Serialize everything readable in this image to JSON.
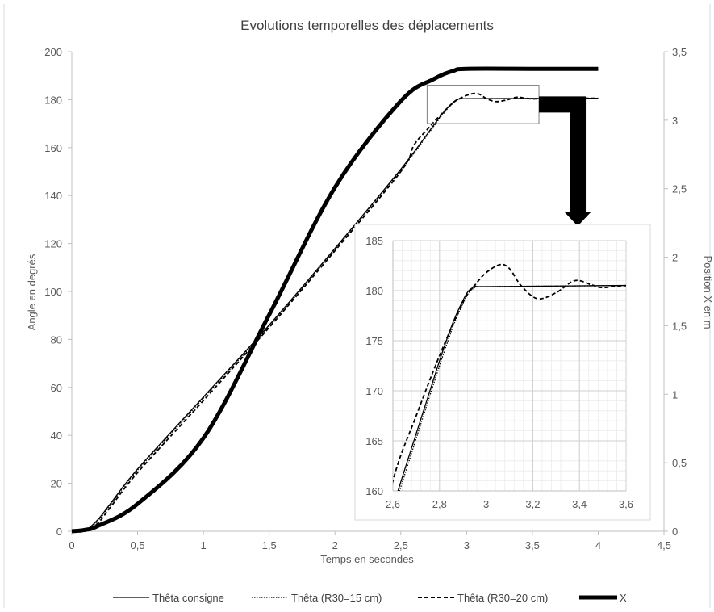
{
  "chart_data": {
    "type": "line",
    "title": "Evolutions temporelles des déplacements",
    "xlabel": "Temps en secondes",
    "ylabel": "Angle en degrés",
    "y2label": "Position X en m",
    "xlim": [
      0,
      4.5
    ],
    "ylim": [
      0,
      200
    ],
    "y2lim": [
      0,
      3.5
    ],
    "xticks": [
      "0",
      "0,5",
      "1",
      "1,5",
      "2",
      "2,5",
      "3",
      "3,5",
      "4",
      "4,5"
    ],
    "yticks": [
      "0",
      "20",
      "40",
      "60",
      "80",
      "100",
      "120",
      "140",
      "160",
      "180",
      "200"
    ],
    "y2ticks": [
      "0",
      "0,5",
      "1",
      "1,5",
      "2",
      "2,5",
      "3",
      "3,5"
    ],
    "grid": false,
    "legend_position": "bottom",
    "series": [
      {
        "name": "Thêta consigne",
        "axis": "left",
        "style": "solid-thin",
        "x": [
          0,
          0.1,
          0.2,
          0.3,
          0.5,
          1.0,
          1.5,
          2.0,
          2.5,
          2.8,
          2.9,
          2.95,
          3.0,
          3.5,
          4.0
        ],
        "y": [
          0,
          0.3,
          5,
          12,
          26,
          56,
          86,
          118,
          151,
          173,
          179,
          180.4,
          180.4,
          180.5,
          180.6
        ]
      },
      {
        "name": "Thêta (R30=15 cm)",
        "axis": "left",
        "style": "dotted",
        "x": [
          0,
          0.1,
          0.2,
          0.3,
          0.5,
          1.0,
          1.5,
          2.0,
          2.5,
          2.8,
          2.9,
          2.95,
          3.0,
          3.5,
          4.0
        ],
        "y": [
          0,
          0.2,
          4.5,
          11.5,
          25.5,
          55.5,
          85.5,
          117.5,
          150.5,
          172.5,
          178.7,
          180.3,
          180.4,
          180.5,
          180.6
        ]
      },
      {
        "name": "Thêta (R30=20 cm)",
        "axis": "left",
        "style": "dashed",
        "x": [
          0,
          0.1,
          0.2,
          0.3,
          0.5,
          1.0,
          1.5,
          2.0,
          2.5,
          2.6,
          2.7,
          2.8,
          2.9,
          2.95,
          3.0,
          3.06,
          3.1,
          3.15,
          3.22,
          3.3,
          3.38,
          3.45,
          3.5,
          3.6,
          4.0
        ],
        "y": [
          0,
          0,
          3.5,
          10.5,
          24.5,
          54.5,
          85,
          117,
          150,
          161,
          167.5,
          173.5,
          178.8,
          180.5,
          181.8,
          182.6,
          182.2,
          180.5,
          179.2,
          179.8,
          181,
          180.6,
          180.3,
          180.5,
          180.6
        ]
      },
      {
        "name": "X",
        "axis": "right",
        "style": "solid-thick",
        "x": [
          0,
          0.1,
          0.2,
          0.5,
          1.0,
          1.5,
          2.0,
          2.5,
          2.75,
          2.9,
          3.0,
          3.5,
          4.0
        ],
        "y": [
          0,
          0.01,
          0.04,
          0.2,
          0.68,
          1.58,
          2.51,
          3.14,
          3.3,
          3.36,
          3.375,
          3.375,
          3.375
        ]
      }
    ],
    "zoom_box": {
      "xlim": [
        2.7,
        3.55
      ],
      "ylim": [
        170,
        186
      ]
    },
    "inset": {
      "xlim": [
        2.6,
        3.6
      ],
      "ylim": [
        160,
        185
      ],
      "xticks": [
        "2,6",
        "2,8",
        "3",
        "3,2",
        "3,4",
        "3,6"
      ],
      "yticks": [
        "160",
        "165",
        "170",
        "175",
        "180",
        "185"
      ],
      "grid": true
    }
  },
  "legend": {
    "items": [
      "Thêta consigne",
      "Thêta (R30=15 cm)",
      "Thêta (R30=20 cm)",
      "X"
    ]
  }
}
